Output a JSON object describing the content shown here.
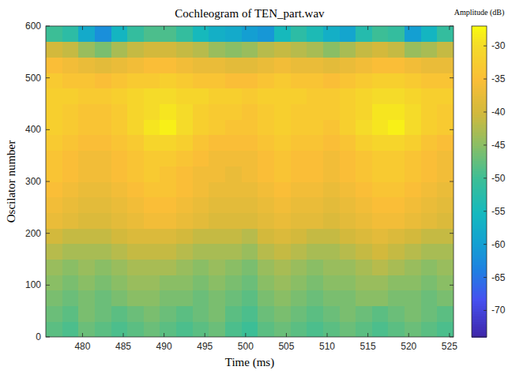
{
  "chart_data": {
    "type": "heatmap",
    "title": "Cochleogram of TEN_part.wav",
    "x_label": "Time (ms)",
    "y_label": "Oscilator number",
    "x": [
      476.5,
      478.5,
      480.5,
      482.5,
      484.5,
      486.5,
      488.5,
      490.5,
      492.5,
      494.5,
      496.5,
      498.5,
      500.5,
      502.5,
      504.5,
      506.5,
      508.5,
      510.5,
      512.5,
      514.5,
      516.5,
      518.5,
      520.5,
      522.5,
      524.5
    ],
    "y": [
      15,
      45,
      75,
      105,
      135,
      165,
      195,
      225,
      255,
      285,
      315,
      345,
      375,
      405,
      435,
      465,
      495,
      525,
      555,
      585
    ],
    "values": [
      [
        -48,
        -49,
        -47,
        -48,
        -49,
        -48,
        -47,
        -48,
        -49,
        -48,
        -47,
        -49,
        -50,
        -48,
        -47,
        -48,
        -49,
        -48,
        -47,
        -48,
        -49,
        -48,
        -47,
        -48,
        -49
      ],
      [
        -47,
        -48,
        -46,
        -47,
        -48,
        -47,
        -46,
        -47,
        -48,
        -47,
        -46,
        -48,
        -49,
        -47,
        -46,
        -47,
        -48,
        -47,
        -46,
        -47,
        -48,
        -47,
        -46,
        -47,
        -48
      ],
      [
        -46,
        -47,
        -46,
        -47,
        -46,
        -45,
        -45,
        -46,
        -46,
        -47,
        -46,
        -47,
        -48,
        -46,
        -45,
        -46,
        -47,
        -46,
        -46,
        -45,
        -45,
        -46,
        -46,
        -47,
        -46
      ],
      [
        -45,
        -46,
        -45,
        -46,
        -45,
        -44,
        -44,
        -45,
        -45,
        -46,
        -45,
        -46,
        -47,
        -45,
        -44,
        -45,
        -46,
        -45,
        -45,
        -44,
        -44,
        -45,
        -45,
        -46,
        -45
      ],
      [
        -44,
        -45,
        -44,
        -45,
        -44,
        -43,
        -43,
        -43,
        -44,
        -45,
        -44,
        -45,
        -46,
        -44,
        -43,
        -44,
        -45,
        -44,
        -44,
        -43,
        -42,
        -43,
        -44,
        -45,
        -44
      ],
      [
        -42,
        -43,
        -43,
        -43,
        -42,
        -41,
        -41,
        -41,
        -42,
        -43,
        -43,
        -43,
        -44,
        -42,
        -41,
        -42,
        -43,
        -43,
        -42,
        -41,
        -40,
        -41,
        -42,
        -43,
        -43
      ],
      [
        -40,
        -41,
        -41,
        -41,
        -40,
        -39,
        -39,
        -39,
        -40,
        -41,
        -41,
        -41,
        -42,
        -40,
        -39,
        -40,
        -41,
        -41,
        -40,
        -39,
        -38,
        -39,
        -40,
        -41,
        -41
      ],
      [
        -37,
        -38,
        -39,
        -39,
        -38,
        -37,
        -36,
        -36,
        -37,
        -38,
        -39,
        -39,
        -39,
        -38,
        -37,
        -38,
        -38,
        -39,
        -38,
        -37,
        -36,
        -36,
        -37,
        -38,
        -39
      ],
      [
        -36,
        -37,
        -38,
        -38,
        -37,
        -36,
        -35,
        -35,
        -36,
        -37,
        -38,
        -38,
        -38,
        -37,
        -36,
        -37,
        -37,
        -38,
        -37,
        -36,
        -35,
        -35,
        -36,
        -37,
        -38
      ],
      [
        -35,
        -36,
        -37,
        -37,
        -36,
        -35,
        -34,
        -34,
        -35,
        -36,
        -37,
        -37,
        -37,
        -36,
        -35,
        -36,
        -36,
        -37,
        -36,
        -35,
        -34,
        -34,
        -35,
        -36,
        -37
      ],
      [
        -34,
        -35,
        -36,
        -36,
        -35,
        -34,
        -33,
        -34,
        -35,
        -36,
        -36,
        -37,
        -36,
        -35,
        -34,
        -35,
        -35,
        -36,
        -35,
        -34,
        -33,
        -33,
        -34,
        -35,
        -36
      ],
      [
        -34,
        -35,
        -36,
        -36,
        -35,
        -34,
        -33,
        -33,
        -34,
        -35,
        -36,
        -36,
        -36,
        -35,
        -34,
        -35,
        -35,
        -36,
        -35,
        -34,
        -33,
        -33,
        -34,
        -35,
        -36
      ],
      [
        -33,
        -34,
        -35,
        -35,
        -34,
        -33,
        -31,
        -31,
        -32,
        -34,
        -35,
        -35,
        -35,
        -34,
        -33,
        -34,
        -34,
        -35,
        -34,
        -32,
        -31,
        -31,
        -32,
        -34,
        -35
      ],
      [
        -32,
        -33,
        -34,
        -34,
        -33,
        -31,
        -29,
        -28,
        -30,
        -32,
        -33,
        -34,
        -34,
        -33,
        -32,
        -33,
        -33,
        -34,
        -32,
        -30,
        -29,
        -28,
        -30,
        -32,
        -33
      ],
      [
        -32,
        -33,
        -34,
        -34,
        -33,
        -31,
        -30,
        -29,
        -30,
        -32,
        -33,
        -33,
        -34,
        -33,
        -32,
        -33,
        -33,
        -33,
        -32,
        -31,
        -29,
        -29,
        -30,
        -32,
        -33
      ],
      [
        -32,
        -32,
        -33,
        -33,
        -32,
        -31,
        -30,
        -30,
        -31,
        -31,
        -32,
        -32,
        -33,
        -32,
        -32,
        -32,
        -33,
        -33,
        -32,
        -31,
        -30,
        -30,
        -31,
        -32,
        -32
      ],
      [
        -33,
        -34,
        -34,
        -35,
        -34,
        -33,
        -33,
        -32,
        -33,
        -34,
        -34,
        -35,
        -35,
        -34,
        -33,
        -34,
        -34,
        -35,
        -34,
        -33,
        -32,
        -32,
        -33,
        -34,
        -34
      ],
      [
        -35,
        -36,
        -37,
        -38,
        -37,
        -36,
        -35,
        -35,
        -36,
        -37,
        -37,
        -38,
        -38,
        -37,
        -36,
        -37,
        -37,
        -38,
        -37,
        -36,
        -35,
        -35,
        -36,
        -37,
        -37
      ],
      [
        -40,
        -41,
        -44,
        -46,
        -43,
        -41,
        -40,
        -40,
        -41,
        -42,
        -44,
        -45,
        -44,
        -42,
        -41,
        -42,
        -43,
        -45,
        -43,
        -41,
        -40,
        -41,
        -44,
        -43,
        -41
      ],
      [
        -50,
        -52,
        -58,
        -62,
        -56,
        -51,
        -49,
        -49,
        -51,
        -55,
        -57,
        -58,
        -60,
        -61,
        -55,
        -52,
        -54,
        -57,
        -59,
        -53,
        -50,
        -51,
        -60,
        -56,
        -51
      ]
    ],
    "xlim": [
      475.5,
      525.5
    ],
    "ylim": [
      0,
      600
    ],
    "xticks": [
      480,
      485,
      490,
      495,
      500,
      505,
      510,
      515,
      520,
      525
    ],
    "yticks": [
      0,
      100,
      200,
      300,
      400,
      500,
      600
    ],
    "colorbar": {
      "label": "Amplitude (dB)",
      "range": [
        -74,
        -27
      ],
      "ticks": [
        -70,
        -65,
        -60,
        -55,
        -50,
        -45,
        -40,
        -35,
        -30
      ]
    }
  }
}
